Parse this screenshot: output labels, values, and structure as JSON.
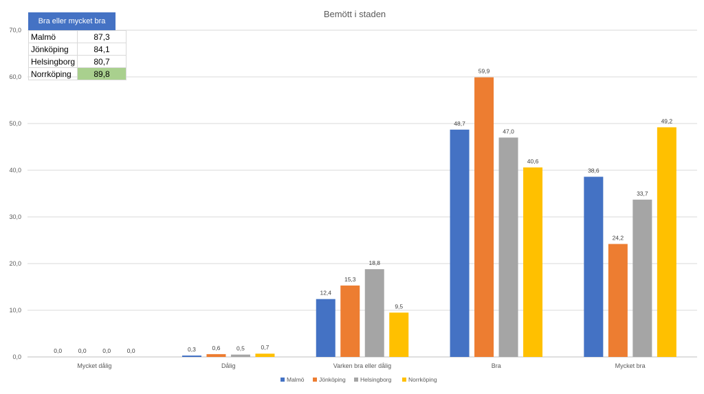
{
  "chart_data": {
    "type": "bar",
    "title": "Bemött i staden",
    "categories": [
      "Mycket dålig",
      "Dålig",
      "Varken bra eller dålig",
      "Bra",
      "Mycket bra"
    ],
    "series": [
      {
        "name": "Malmö",
        "color": "#4472c4",
        "values": [
          0.0,
          0.3,
          12.4,
          48.7,
          38.6
        ]
      },
      {
        "name": "Jönköping",
        "color": "#ed7d31",
        "values": [
          0.0,
          0.6,
          15.3,
          59.9,
          24.2
        ]
      },
      {
        "name": "Helsingborg",
        "color": "#a5a5a5",
        "values": [
          0.0,
          0.5,
          18.8,
          47.0,
          33.7
        ]
      },
      {
        "name": "Norrköping",
        "color": "#ffc000",
        "values": [
          0.0,
          0.7,
          9.5,
          40.6,
          49.2
        ]
      }
    ],
    "ylim": [
      0,
      70
    ],
    "yticks": [
      "0,0",
      "10,0",
      "20,0",
      "30,0",
      "40,0",
      "50,0",
      "60,0",
      "70,0"
    ],
    "data_labels": [
      [
        "0,0",
        "0,3",
        "12,4",
        "48,7",
        "38,6"
      ],
      [
        "0,0",
        "0,6",
        "15,3",
        "59,9",
        "24,2"
      ],
      [
        "0,0",
        "0,5",
        "18,8",
        "47,0",
        "33,7"
      ],
      [
        "0,0",
        "0,7",
        "9,5",
        "40,6",
        "49,2"
      ]
    ],
    "grid": true,
    "legend": "bottom"
  },
  "inset_table": {
    "header": "Bra eller mycket bra",
    "rows": [
      {
        "city": "Malmö",
        "value": "87,3"
      },
      {
        "city": "Jönköping",
        "value": "84,1"
      },
      {
        "city": "Helsingborg",
        "value": "80,7"
      },
      {
        "city": "Norrköping",
        "value": "89,8"
      }
    ],
    "highlight_color": "#a9d08e"
  }
}
